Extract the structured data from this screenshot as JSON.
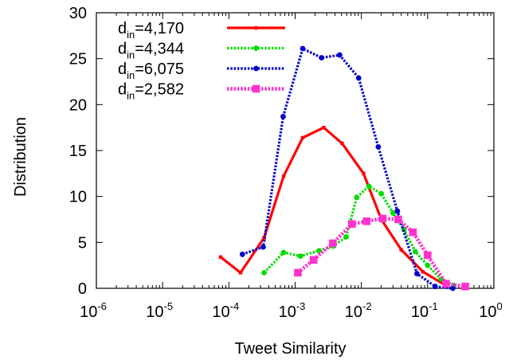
{
  "chart_data": {
    "type": "line",
    "xlabel": "Tweet Similarity",
    "ylabel": "Distribution",
    "xscale": "log",
    "xlim": [
      1e-06,
      1
    ],
    "ylim": [
      0,
      30
    ],
    "x_ticks": [
      {
        "value": 1e-06,
        "base": "10",
        "exp": "-6"
      },
      {
        "value": 1e-05,
        "base": "10",
        "exp": "-5"
      },
      {
        "value": 0.0001,
        "base": "10",
        "exp": "-4"
      },
      {
        "value": 0.001,
        "base": "10",
        "exp": "-3"
      },
      {
        "value": 0.01,
        "base": "10",
        "exp": "-2"
      },
      {
        "value": 0.1,
        "base": "10",
        "exp": "-1"
      },
      {
        "value": 1,
        "base": "10",
        "exp": "0"
      }
    ],
    "y_ticks": [
      0,
      5,
      10,
      15,
      20,
      25,
      30
    ],
    "legend_position": "top-left",
    "series": [
      {
        "name_main": "d",
        "name_sub": "in",
        "name_rest": "=4,170",
        "color": "#ff0000",
        "style": "solid",
        "marker": "small-square",
        "x": [
          7.5e-05,
          0.00015,
          0.00034,
          0.00067,
          0.0013,
          0.0027,
          0.0051,
          0.0108,
          0.02,
          0.04,
          0.085,
          0.18
        ],
        "y": [
          3.4,
          1.7,
          5.5,
          12.2,
          16.4,
          17.5,
          15.8,
          12.5,
          7.5,
          4.2,
          1.8,
          0.4
        ]
      },
      {
        "name_main": "d",
        "name_sub": "in",
        "name_rest": "=4,344",
        "color": "#00dd00",
        "style": "dotted",
        "marker": "circle",
        "x": [
          0.00034,
          0.00067,
          0.0012,
          0.0023,
          0.0038,
          0.0059,
          0.0085,
          0.013,
          0.02,
          0.03,
          0.044,
          0.065,
          0.1,
          0.16,
          0.25
        ],
        "y": [
          1.7,
          3.9,
          3.5,
          4.1,
          4.6,
          5.6,
          9.9,
          11.1,
          10.3,
          8.2,
          6.4,
          4.0,
          2.5,
          1.0,
          0.3
        ]
      },
      {
        "name_main": "d",
        "name_sub": "in",
        "name_rest": "=6,075",
        "color": "#0000cc",
        "style": "dotted",
        "marker": "circle",
        "x": [
          0.00016,
          0.00033,
          0.00066,
          0.0013,
          0.0025,
          0.0047,
          0.0091,
          0.018,
          0.035,
          0.069,
          0.13,
          0.24
        ],
        "y": [
          3.7,
          4.5,
          18.7,
          26.1,
          25.1,
          25.4,
          22.9,
          15.4,
          8.4,
          1.6,
          0.2,
          0.0
        ]
      },
      {
        "name_main": "d",
        "name_sub": "in",
        "name_rest": "=2,582",
        "color": "#ff33cc",
        "style": "dotted-thick",
        "marker": "square",
        "x": [
          0.0011,
          0.0019,
          0.0037,
          0.0072,
          0.012,
          0.021,
          0.036,
          0.06,
          0.1,
          0.19,
          0.37
        ],
        "y": [
          1.7,
          3.1,
          4.9,
          7.0,
          7.3,
          7.6,
          7.5,
          6.1,
          3.6,
          0.5,
          0.2
        ]
      }
    ]
  }
}
